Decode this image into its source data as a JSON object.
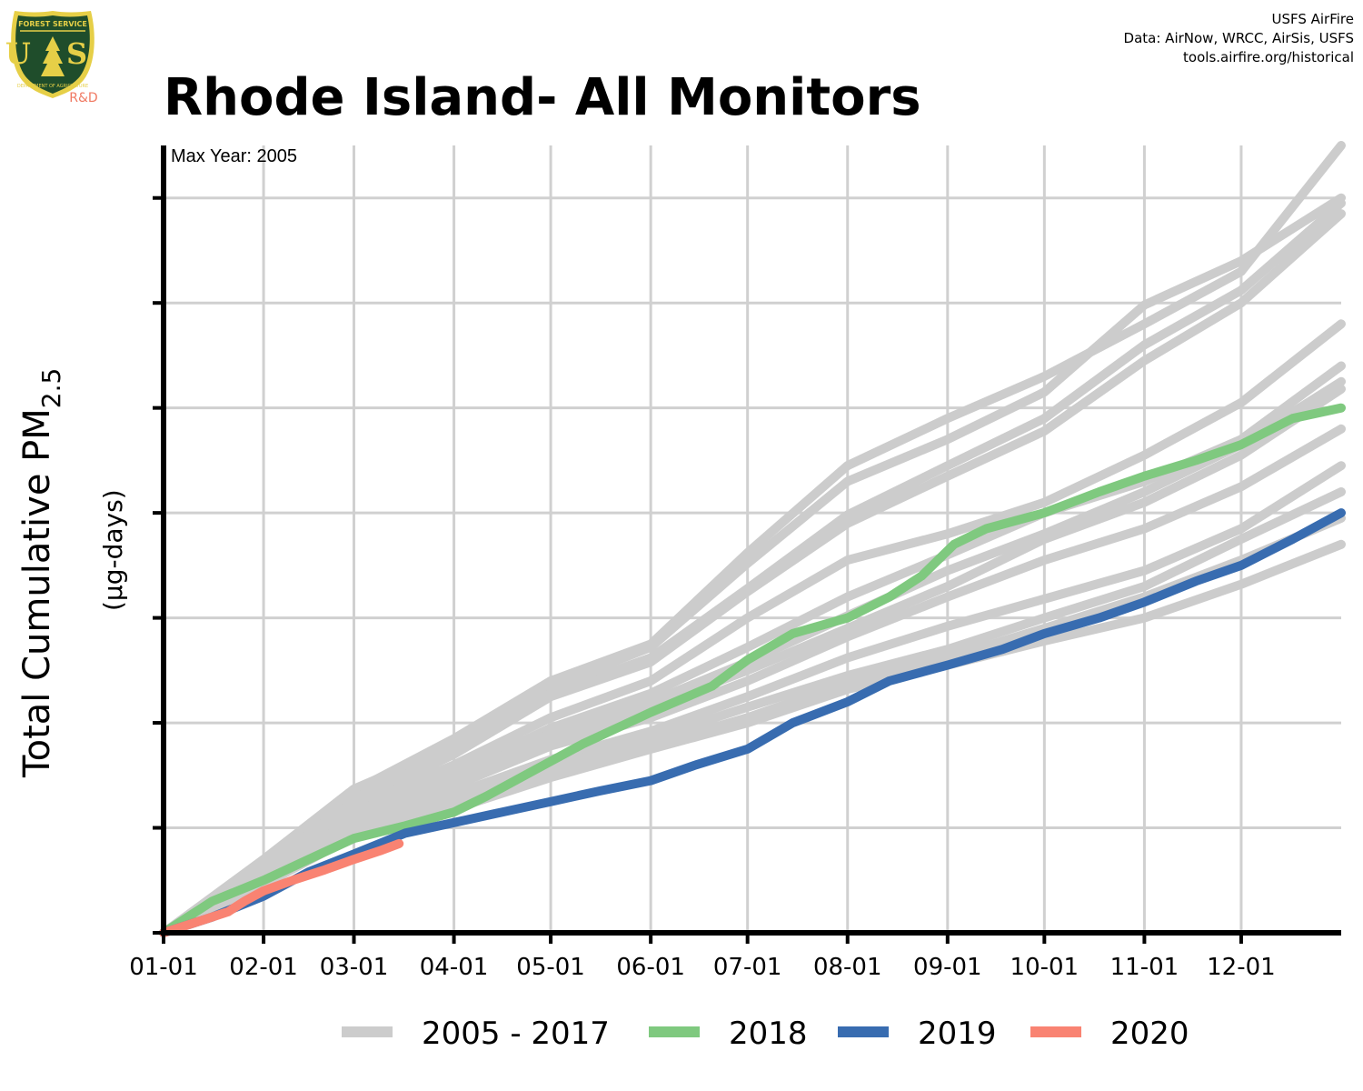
{
  "logo": {
    "top_text": "FOREST SERVICE",
    "monogram": "U S",
    "bottom_text": "DEPARTMENT OF AGRICULTURE",
    "tag": "R&D",
    "colors": {
      "shield": "#1f4d2b",
      "rim": "#e6cf47",
      "tag": "#f07a63"
    }
  },
  "credits": [
    "USFS AirFire",
    "Data: AirNow, WRCC, AirSis, USFS",
    "tools.airfire.org/historical"
  ],
  "chart_data": {
    "type": "line",
    "title": "Rhode Island- All Monitors",
    "annotation": "Max Year: 2005",
    "ylabel": "Total Cumulative PM",
    "ylabel_sub": "2.5",
    "yunit": "(µg-days)",
    "xlabel": "",
    "x_ticks": [
      "01-01",
      "02-01",
      "03-01",
      "04-01",
      "05-01",
      "06-01",
      "07-01",
      "08-01",
      "09-01",
      "10-01",
      "11-01",
      "12-01"
    ],
    "x_tick_days": [
      0,
      31,
      59,
      90,
      120,
      151,
      181,
      212,
      243,
      273,
      304,
      334
    ],
    "xlim": [
      0,
      365
    ],
    "ylim": [
      0,
      750
    ],
    "y_tick_values": [
      0,
      100,
      200,
      300,
      400,
      500,
      600,
      700
    ],
    "y_tick_labels_shown": false,
    "grid": true,
    "legend_position": "bottom",
    "legend": [
      {
        "name": "2005 - 2017",
        "color": "#cccccc"
      },
      {
        "name": "2018",
        "color": "#7fc97f"
      },
      {
        "name": "2019",
        "color": "#386cb0"
      },
      {
        "name": "2020",
        "color": "#f98372"
      }
    ],
    "series": [
      {
        "group": "2005 - 2017",
        "points": [
          [
            0,
            0
          ],
          [
            31,
            68
          ],
          [
            59,
            135
          ],
          [
            90,
            185
          ],
          [
            120,
            240
          ],
          [
            151,
            275
          ],
          [
            181,
            362
          ],
          [
            212,
            445
          ],
          [
            243,
            490
          ],
          [
            273,
            530
          ],
          [
            304,
            580
          ],
          [
            334,
            630
          ],
          [
            365,
            750
          ]
        ]
      },
      {
        "group": "2005 - 2017",
        "points": [
          [
            0,
            0
          ],
          [
            31,
            70
          ],
          [
            59,
            137
          ],
          [
            90,
            178
          ],
          [
            120,
            235
          ],
          [
            151,
            272
          ],
          [
            181,
            352
          ],
          [
            212,
            430
          ],
          [
            243,
            470
          ],
          [
            273,
            515
          ],
          [
            304,
            598
          ],
          [
            334,
            640
          ],
          [
            365,
            700
          ]
        ]
      },
      {
        "group": "2005 - 2017",
        "points": [
          [
            0,
            0
          ],
          [
            31,
            66
          ],
          [
            59,
            128
          ],
          [
            90,
            172
          ],
          [
            120,
            228
          ],
          [
            151,
            262
          ],
          [
            181,
            328
          ],
          [
            212,
            398
          ],
          [
            243,
            445
          ],
          [
            273,
            490
          ],
          [
            304,
            560
          ],
          [
            334,
            612
          ],
          [
            365,
            695
          ]
        ]
      },
      {
        "group": "2005 - 2017",
        "points": [
          [
            0,
            0
          ],
          [
            31,
            64
          ],
          [
            59,
            125
          ],
          [
            90,
            170
          ],
          [
            120,
            225
          ],
          [
            151,
            258
          ],
          [
            181,
            325
          ],
          [
            212,
            390
          ],
          [
            243,
            435
          ],
          [
            273,
            478
          ],
          [
            304,
            545
          ],
          [
            334,
            600
          ],
          [
            365,
            685
          ]
        ]
      },
      {
        "group": "2005 - 2017",
        "points": [
          [
            0,
            0
          ],
          [
            31,
            62
          ],
          [
            59,
            120
          ],
          [
            90,
            160
          ],
          [
            120,
            205
          ],
          [
            151,
            240
          ],
          [
            181,
            300
          ],
          [
            212,
            355
          ],
          [
            243,
            380
          ],
          [
            273,
            410
          ],
          [
            304,
            455
          ],
          [
            334,
            505
          ],
          [
            365,
            580
          ]
        ]
      },
      {
        "group": "2005 - 2017",
        "points": [
          [
            0,
            0
          ],
          [
            31,
            58
          ],
          [
            59,
            115
          ],
          [
            90,
            152
          ],
          [
            120,
            195
          ],
          [
            151,
            228
          ],
          [
            181,
            272
          ],
          [
            212,
            320
          ],
          [
            243,
            360
          ],
          [
            273,
            400
          ],
          [
            304,
            430
          ],
          [
            334,
            470
          ],
          [
            365,
            540
          ]
        ]
      },
      {
        "group": "2005 - 2017",
        "points": [
          [
            0,
            0
          ],
          [
            31,
            56
          ],
          [
            59,
            110
          ],
          [
            90,
            147
          ],
          [
            120,
            190
          ],
          [
            151,
            220
          ],
          [
            181,
            258
          ],
          [
            212,
            302
          ],
          [
            243,
            345
          ],
          [
            273,
            380
          ],
          [
            304,
            420
          ],
          [
            334,
            465
          ],
          [
            365,
            525
          ]
        ]
      },
      {
        "group": "2005 - 2017",
        "points": [
          [
            0,
            0
          ],
          [
            31,
            55
          ],
          [
            59,
            108
          ],
          [
            90,
            145
          ],
          [
            120,
            185
          ],
          [
            151,
            215
          ],
          [
            181,
            250
          ],
          [
            212,
            290
          ],
          [
            243,
            330
          ],
          [
            273,
            375
          ],
          [
            304,
            410
          ],
          [
            334,
            455
          ],
          [
            365,
            518
          ]
        ]
      },
      {
        "group": "2005 - 2017",
        "points": [
          [
            0,
            0
          ],
          [
            31,
            54
          ],
          [
            59,
            106
          ],
          [
            90,
            140
          ],
          [
            120,
            178
          ],
          [
            151,
            205
          ],
          [
            181,
            240
          ],
          [
            212,
            282
          ],
          [
            243,
            320
          ],
          [
            273,
            355
          ],
          [
            304,
            385
          ],
          [
            334,
            425
          ],
          [
            365,
            480
          ]
        ]
      },
      {
        "group": "2005 - 2017",
        "points": [
          [
            0,
            0
          ],
          [
            31,
            52
          ],
          [
            59,
            102
          ],
          [
            90,
            132
          ],
          [
            120,
            165
          ],
          [
            151,
            192
          ],
          [
            181,
            225
          ],
          [
            212,
            262
          ],
          [
            243,
            292
          ],
          [
            273,
            318
          ],
          [
            304,
            345
          ],
          [
            334,
            385
          ],
          [
            365,
            445
          ]
        ]
      },
      {
        "group": "2005 - 2017",
        "points": [
          [
            0,
            0
          ],
          [
            31,
            50
          ],
          [
            59,
            98
          ],
          [
            90,
            125
          ],
          [
            120,
            158
          ],
          [
            151,
            185
          ],
          [
            181,
            215
          ],
          [
            212,
            245
          ],
          [
            243,
            270
          ],
          [
            273,
            300
          ],
          [
            304,
            330
          ],
          [
            334,
            375
          ],
          [
            365,
            420
          ]
        ]
      },
      {
        "group": "2005 - 2017",
        "points": [
          [
            0,
            0
          ],
          [
            31,
            48
          ],
          [
            59,
            95
          ],
          [
            90,
            120
          ],
          [
            120,
            150
          ],
          [
            151,
            178
          ],
          [
            181,
            205
          ],
          [
            212,
            238
          ],
          [
            243,
            262
          ],
          [
            273,
            290
          ],
          [
            304,
            320
          ],
          [
            334,
            355
          ],
          [
            365,
            395
          ]
        ]
      },
      {
        "group": "2005 - 2017",
        "points": [
          [
            0,
            0
          ],
          [
            31,
            46
          ],
          [
            59,
            92
          ],
          [
            90,
            118
          ],
          [
            120,
            148
          ],
          [
            151,
            175
          ],
          [
            181,
            200
          ],
          [
            212,
            232
          ],
          [
            243,
            255
          ],
          [
            273,
            278
          ],
          [
            304,
            300
          ],
          [
            334,
            332
          ],
          [
            365,
            370
          ]
        ]
      },
      {
        "name": "2018",
        "points": [
          [
            0,
            0
          ],
          [
            15,
            30
          ],
          [
            31,
            50
          ],
          [
            45,
            70
          ],
          [
            59,
            90
          ],
          [
            75,
            102
          ],
          [
            90,
            115
          ],
          [
            100,
            130
          ],
          [
            115,
            155
          ],
          [
            130,
            180
          ],
          [
            151,
            210
          ],
          [
            170,
            235
          ],
          [
            181,
            260
          ],
          [
            195,
            285
          ],
          [
            212,
            300
          ],
          [
            225,
            320
          ],
          [
            235,
            340
          ],
          [
            245,
            370
          ],
          [
            255,
            385
          ],
          [
            273,
            400
          ],
          [
            290,
            420
          ],
          [
            304,
            435
          ],
          [
            320,
            450
          ],
          [
            334,
            465
          ],
          [
            350,
            490
          ],
          [
            365,
            500
          ]
        ]
      },
      {
        "name": "2019",
        "points": [
          [
            0,
            0
          ],
          [
            15,
            15
          ],
          [
            31,
            35
          ],
          [
            45,
            58
          ],
          [
            59,
            75
          ],
          [
            75,
            95
          ],
          [
            90,
            105
          ],
          [
            105,
            115
          ],
          [
            120,
            125
          ],
          [
            135,
            135
          ],
          [
            151,
            145
          ],
          [
            165,
            160
          ],
          [
            181,
            175
          ],
          [
            195,
            200
          ],
          [
            212,
            220
          ],
          [
            225,
            240
          ],
          [
            243,
            255
          ],
          [
            260,
            270
          ],
          [
            273,
            285
          ],
          [
            290,
            300
          ],
          [
            304,
            315
          ],
          [
            320,
            335
          ],
          [
            334,
            350
          ],
          [
            350,
            375
          ],
          [
            365,
            400
          ]
        ]
      },
      {
        "name": "2020",
        "points": [
          [
            0,
            0
          ],
          [
            10,
            10
          ],
          [
            20,
            20
          ],
          [
            25,
            30
          ],
          [
            31,
            40
          ],
          [
            40,
            50
          ],
          [
            50,
            60
          ],
          [
            59,
            70
          ],
          [
            67,
            78
          ],
          [
            73,
            85
          ]
        ]
      }
    ]
  }
}
